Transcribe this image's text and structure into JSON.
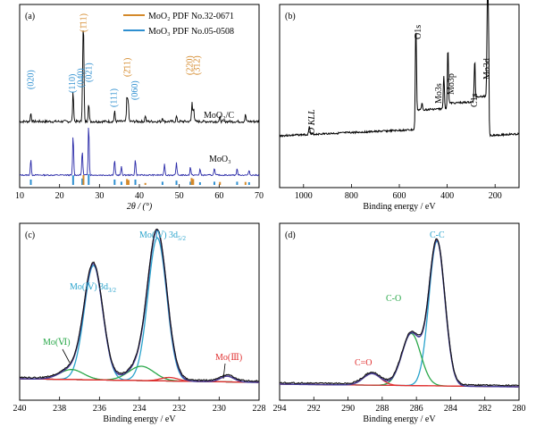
{
  "chart_data": [
    {
      "panel": "(a)",
      "type": "line",
      "xlabel": "2θ / (°)",
      "xlim": [
        10,
        70
      ],
      "xticks": [
        10,
        20,
        30,
        40,
        50,
        60,
        70
      ],
      "legend_position": "top-right",
      "legend": [
        {
          "name": "MoO2 PDF No.32-0671",
          "color": "#d4892a"
        },
        {
          "name": "MoO3 PDF No.05-0508",
          "color": "#2e8fd0"
        }
      ],
      "series": [
        {
          "name": "MoO2/C",
          "color": "#000000",
          "peaks": [
            [
              12.8,
              10
            ],
            [
              23.4,
              35
            ],
            [
              25.8,
              42
            ],
            [
              26.0,
              100
            ],
            [
              27.3,
              22
            ],
            [
              33.8,
              12
            ],
            [
              36.9,
              28
            ],
            [
              37.2,
              24
            ],
            [
              41.5,
              7
            ],
            [
              45.8,
              5
            ],
            [
              49.3,
              6
            ],
            [
              53.2,
              22
            ],
            [
              53.6,
              17
            ],
            [
              60.2,
              5
            ],
            [
              66.6,
              8
            ]
          ]
        },
        {
          "name": "MoO3",
          "color": "#2a2aa8",
          "peaks": [
            [
              12.8,
              30
            ],
            [
              23.4,
              78
            ],
            [
              25.7,
              48
            ],
            [
              27.3,
              100
            ],
            [
              33.8,
              30
            ],
            [
              35.5,
              16
            ],
            [
              39.0,
              30
            ],
            [
              46.3,
              22
            ],
            [
              49.3,
              24
            ],
            [
              52.8,
              16
            ],
            [
              55.2,
              12
            ],
            [
              58.8,
              14
            ],
            [
              64.5,
              12
            ],
            [
              67.5,
              10
            ]
          ]
        }
      ],
      "sticks_MoO3": [
        [
          12.8,
          0.5
        ],
        [
          23.4,
          0.9
        ],
        [
          25.7,
          0.6
        ],
        [
          27.3,
          1.0
        ],
        [
          33.8,
          0.5
        ],
        [
          35.5,
          0.3
        ],
        [
          39.0,
          0.5
        ],
        [
          45.8,
          0.3
        ],
        [
          49.3,
          0.4
        ],
        [
          52.8,
          0.3
        ],
        [
          55.2,
          0.25
        ],
        [
          58.8,
          0.3
        ],
        [
          64.5,
          0.3
        ],
        [
          67.5,
          0.25
        ]
      ],
      "sticks_MoO2": [
        [
          26.0,
          1.0
        ],
        [
          36.9,
          0.6
        ],
        [
          37.3,
          0.5
        ],
        [
          41.5,
          0.2
        ],
        [
          53.1,
          0.7
        ],
        [
          53.5,
          0.6
        ],
        [
          60.2,
          0.3
        ],
        [
          66.6,
          0.3
        ]
      ],
      "annotations": [
        {
          "text": "(020)",
          "x": 12.8,
          "color": "#2e8fd0"
        },
        {
          "text": "(110)",
          "x": 23.2,
          "color": "#2e8fd0"
        },
        {
          "text": "(040)",
          "x": 25.3,
          "color": "#2e8fd0"
        },
        {
          "text": "(021)",
          "x": 27.4,
          "color": "#2e8fd0"
        },
        {
          "text": "(111)",
          "x": 33.6,
          "color": "#2e8fd0"
        },
        {
          "text": "(060)",
          "x": 38.9,
          "color": "#2e8fd0"
        },
        {
          "text": "(1̄11)",
          "x": 26.0,
          "color": "#d4892a"
        },
        {
          "text": "(2̄11)",
          "x": 37.0,
          "color": "#d4892a"
        },
        {
          "text": "(220)",
          "x": 52.6,
          "color": "#d4892a"
        },
        {
          "text": "(3̄12)",
          "x": 54.4,
          "color": "#d4892a"
        }
      ],
      "curve_labels": [
        "MoO2/C",
        "MoO3"
      ]
    },
    {
      "panel": "(b)",
      "type": "line",
      "xlabel": "Binding energy / eV",
      "xlim": [
        1100,
        100
      ],
      "xticks": [
        1000,
        800,
        600,
        400,
        200
      ],
      "series": [
        {
          "name": "survey",
          "color": "#000000",
          "peaks": [
            [
              976,
              8
            ],
            [
              531,
              95
            ],
            [
              505,
              6
            ],
            [
              414,
              30
            ],
            [
              397,
              50
            ],
            [
              285,
              38
            ],
            [
              232,
              82
            ],
            [
              228,
              60
            ]
          ]
        }
      ],
      "annotations": [
        {
          "text": "O KLL",
          "x": 976
        },
        {
          "text": "O1s",
          "x": 531
        },
        {
          "text": "Mo3s",
          "x": 414
        },
        {
          "text": "Mo3p",
          "x": 396
        },
        {
          "text": "C1s",
          "x": 285
        },
        {
          "text": "Mo3d",
          "x": 232
        }
      ]
    },
    {
      "panel": "(c)",
      "type": "line",
      "xlabel": "Binding energy / eV",
      "xlim": [
        240,
        228
      ],
      "xticks": [
        240,
        238,
        236,
        234,
        232,
        230,
        228
      ],
      "components": [
        {
          "name": "Mo(IV) 3d3/2",
          "center": 236.3,
          "height": 0.8,
          "width": 0.55,
          "color": "#29a3cc"
        },
        {
          "name": "Mo(IV) 3d5/2",
          "center": 233.1,
          "height": 1.0,
          "width": 0.55,
          "color": "#29a3cc"
        },
        {
          "name": "Mo(VI)",
          "center": 237.4,
          "height": 0.07,
          "width": 0.7,
          "color": "#2aa84a"
        },
        {
          "name": "Mo(VI)",
          "center": 233.9,
          "height": 0.1,
          "width": 0.75,
          "color": "#2aa84a"
        },
        {
          "name": "Mo(III)",
          "center": 232.5,
          "height": 0.025,
          "width": 0.5,
          "color": "#e03030"
        },
        {
          "name": "Mo(III)",
          "center": 229.6,
          "height": 0.04,
          "width": 0.4,
          "color": "#e03030"
        }
      ],
      "annotations": [
        {
          "text": "Mo(Ⅳ) 3d3/2",
          "color": "#29a3cc"
        },
        {
          "text": "Mo(Ⅳ) 3d5/2",
          "color": "#29a3cc"
        },
        {
          "text": "Mo(Ⅵ)",
          "color": "#2aa84a"
        },
        {
          "text": "Mo(Ⅲ)",
          "color": "#e03030"
        }
      ]
    },
    {
      "panel": "(d)",
      "type": "line",
      "xlabel": "Binding energy / eV",
      "xlim": [
        294,
        280
      ],
      "xticks": [
        294,
        292,
        290,
        288,
        286,
        284,
        282,
        280
      ],
      "components": [
        {
          "name": "C-C",
          "center": 284.8,
          "height": 1.0,
          "width": 0.55,
          "color": "#29a3cc"
        },
        {
          "name": "C-O",
          "center": 286.3,
          "height": 0.36,
          "width": 0.65,
          "color": "#2aa84a"
        },
        {
          "name": "C=O",
          "center": 288.6,
          "height": 0.08,
          "width": 0.6,
          "color": "#e03030"
        }
      ],
      "annotations": [
        {
          "text": "C-C",
          "color": "#29a3cc"
        },
        {
          "text": "C-O",
          "color": "#2aa84a"
        },
        {
          "text": "C=O",
          "color": "#e03030"
        }
      ]
    }
  ],
  "labels": {
    "a": {
      "panel": "(a)",
      "xlabel": "2θ / (°)",
      "legend1": "MoO₂ PDF No.32-0671",
      "legend2": "MoO₃ PDF No.05-0508",
      "curve1": "MoO₂/C",
      "curve2": "MoO₃"
    },
    "b": {
      "panel": "(b)",
      "xlabel": "Binding energy / eV",
      "okll": "O KLL",
      "o1s": "O1s",
      "mo3s": "Mo3s",
      "mo3p": "Mo3p",
      "c1s": "C1s",
      "mo3d": "Mo3d"
    },
    "c": {
      "panel": "(c)",
      "xlabel": "Binding energy / eV",
      "mo4a": "Mo(Ⅳ) 3d",
      "mo4a_sub": "3/2",
      "mo4b": "Mo(Ⅳ) 3d",
      "mo4b_sub": "5/2",
      "mo6": "Mo(Ⅵ)",
      "mo3": "Mo(Ⅲ)"
    },
    "d": {
      "panel": "(d)",
      "xlabel": "Binding energy / eV",
      "cc": "C-C",
      "co": "C-O",
      "c_eq_o": "C=O"
    }
  }
}
